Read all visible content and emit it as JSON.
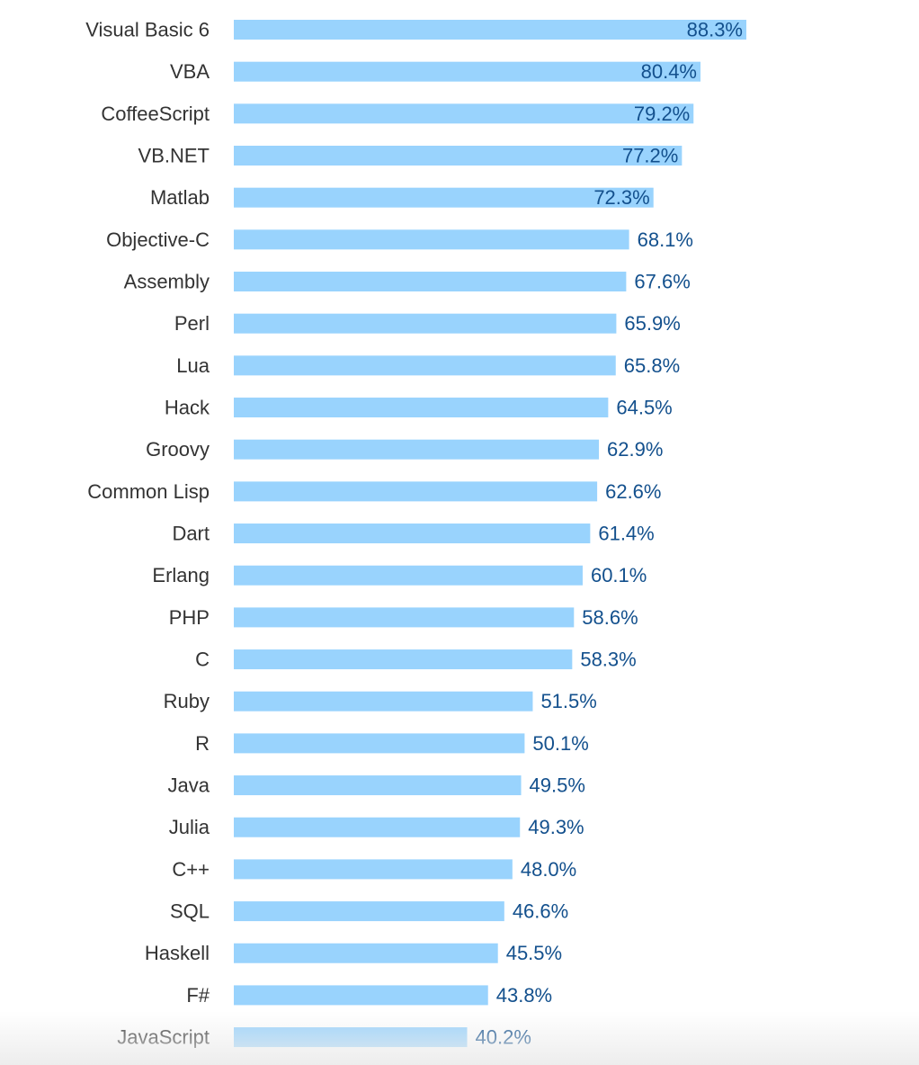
{
  "chart_data": {
    "type": "bar",
    "orientation": "horizontal",
    "categories": [
      "Visual Basic 6",
      "VBA",
      "CoffeeScript",
      "VB.NET",
      "Matlab",
      "Objective-C",
      "Assembly",
      "Perl",
      "Lua",
      "Hack",
      "Groovy",
      "Common Lisp",
      "Dart",
      "Erlang",
      "PHP",
      "C",
      "Ruby",
      "R",
      "Java",
      "Julia",
      "C++",
      "SQL",
      "Haskell",
      "F#",
      "JavaScript"
    ],
    "values": [
      88.3,
      80.4,
      79.2,
      77.2,
      72.3,
      68.1,
      67.6,
      65.9,
      65.8,
      64.5,
      62.9,
      62.6,
      61.4,
      60.1,
      58.6,
      58.3,
      51.5,
      50.1,
      49.5,
      49.3,
      48.0,
      46.6,
      45.5,
      43.8,
      40.2
    ],
    "value_labels": [
      "88.3%",
      "80.4%",
      "79.2%",
      "77.2%",
      "72.3%",
      "68.1%",
      "67.6%",
      "65.9%",
      "65.8%",
      "64.5%",
      "62.9%",
      "62.6%",
      "61.4%",
      "60.1%",
      "58.6%",
      "58.3%",
      "51.5%",
      "50.1%",
      "49.5%",
      "49.3%",
      "48.0%",
      "46.6%",
      "45.5%",
      "43.8%",
      "40.2%"
    ],
    "xlim": [
      0,
      100
    ],
    "grid": false,
    "legend": "none",
    "bar_color": "#99d3fd",
    "label_color": "#13508d",
    "category_color": "#333333"
  }
}
